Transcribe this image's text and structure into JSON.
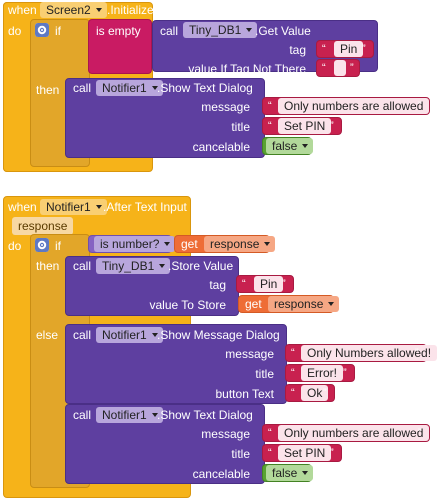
{
  "colors": {
    "event": "#f6b319",
    "control": "#e2a629",
    "procedure": "#5e3fa0",
    "logic": "#8663c2",
    "string": "#c8214f",
    "local": "#ee6d36",
    "boolean": "#58a231"
  },
  "block1": {
    "when": "when",
    "component": "Screen2",
    "event": ".Initialize",
    "do": "do",
    "if": "if",
    "is_empty": "is empty",
    "call1": "call",
    "db_component": "Tiny_DB1",
    "get_value": ".Get Value",
    "tag_label": "tag",
    "tag_value": "Pin",
    "value_if_label": "value If Tag Not There",
    "then": "then",
    "call2": "call",
    "notifier": "Notifier1",
    "show_text_dialog": ".Show Text Dialog",
    "message_label": "message",
    "message_value": "Only numbers are allowed",
    "title_label": "title",
    "title_value": "Set PIN",
    "cancelable_label": "cancelable",
    "cancelable_value": "false"
  },
  "block2": {
    "when": "when",
    "component": "Notifier1",
    "event": ".After Text Input",
    "param": "response",
    "do": "do",
    "if": "if",
    "is_number": "is number?",
    "get": "get",
    "get_var": "response",
    "then": "then",
    "call1": "call",
    "db_component": "Tiny_DB1",
    "store_value": ".Store Value",
    "tag_label": "tag",
    "tag_value": "Pin",
    "value_to_store_label": "value To Store",
    "get2": "get",
    "get2_var": "response",
    "else": "else",
    "call2": "call",
    "notifier": "Notifier1",
    "show_message_dialog": ".Show Message Dialog",
    "message_label": "message",
    "message_value": "Only Numbers allowed!",
    "title_label": "title",
    "title_value": "Error!",
    "button_text_label": "button Text",
    "button_text_value": "Ok",
    "call3": "call",
    "notifier3": "Notifier1",
    "show_text_dialog": ".Show Text Dialog",
    "message2_label": "message",
    "message2_value": "Only numbers are allowed",
    "title2_label": "title",
    "title2_value": "Set PIN",
    "cancelable_label": "cancelable",
    "cancelable_value": "false"
  }
}
